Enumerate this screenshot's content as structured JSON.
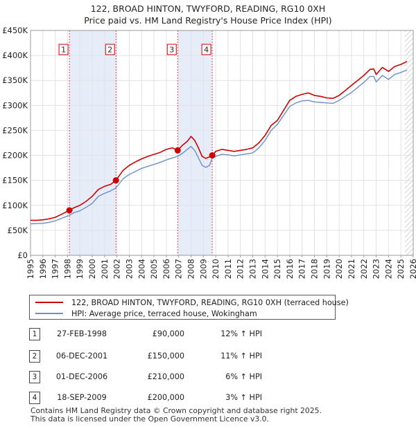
{
  "chart_data": {
    "type": "line",
    "title": "122, BROAD HINTON, TWYFORD, READING, RG10 0XH",
    "subtitle": "Price paid vs. HM Land Registry's House Price Index (HPI)",
    "xlabel": "",
    "ylabel": "",
    "xlim": [
      1995,
      2026
    ],
    "ylim": [
      0,
      450000
    ],
    "x_ticks": [
      "1995",
      "1996",
      "1997",
      "1998",
      "1999",
      "2000",
      "2001",
      "2002",
      "2003",
      "2004",
      "2005",
      "2006",
      "2007",
      "2008",
      "2009",
      "2010",
      "2011",
      "2012",
      "2013",
      "2014",
      "2015",
      "2016",
      "2017",
      "2018",
      "2019",
      "2020",
      "2021",
      "2022",
      "2023",
      "2024",
      "2025",
      "2026"
    ],
    "y_ticks": [
      {
        "value": 0,
        "label": "£0"
      },
      {
        "value": 50000,
        "label": "£50K"
      },
      {
        "value": 100000,
        "label": "£100K"
      },
      {
        "value": 150000,
        "label": "£150K"
      },
      {
        "value": 200000,
        "label": "£200K"
      },
      {
        "value": 250000,
        "label": "£250K"
      },
      {
        "value": 300000,
        "label": "£300K"
      },
      {
        "value": 350000,
        "label": "£350K"
      },
      {
        "value": 400000,
        "label": "£400K"
      },
      {
        "value": 450000,
        "label": "£450K"
      }
    ],
    "grid": true,
    "series": [
      {
        "name": "122, BROAD HINTON, TWYFORD, READING, RG10 0XH (terraced house)",
        "color": "#cc0000",
        "x": [
          1995.0,
          1995.5,
          1996.0,
          1996.5,
          1997.0,
          1997.5,
          1998.15,
          1998.5,
          1999.0,
          1999.5,
          2000.0,
          2000.5,
          2001.0,
          2001.5,
          2001.92,
          2002.5,
          2003.0,
          2003.5,
          2004.0,
          2004.5,
          2005.0,
          2005.5,
          2006.0,
          2006.5,
          2006.92,
          2007.3,
          2007.7,
          2008.0,
          2008.3,
          2008.6,
          2008.9,
          2009.2,
          2009.5,
          2009.72,
          2010.0,
          2010.5,
          2011.0,
          2011.5,
          2012.0,
          2012.5,
          2013.0,
          2013.5,
          2014.0,
          2014.5,
          2015.0,
          2015.5,
          2016.0,
          2016.5,
          2017.0,
          2017.5,
          2018.0,
          2018.5,
          2019.0,
          2019.5,
          2020.0,
          2020.5,
          2021.0,
          2021.5,
          2022.0,
          2022.5,
          2022.8,
          2023.0,
          2023.5,
          2024.0,
          2024.5,
          2025.0,
          2025.5
        ],
        "values": [
          70000,
          70000,
          71000,
          73000,
          76000,
          82000,
          90000,
          95000,
          100000,
          108000,
          118000,
          132000,
          138000,
          142000,
          150000,
          170000,
          180000,
          187000,
          193000,
          198000,
          202000,
          206000,
          212000,
          215000,
          210000,
          220000,
          228000,
          238000,
          230000,
          215000,
          198000,
          194000,
          197000,
          200000,
          208000,
          212000,
          210000,
          208000,
          210000,
          212000,
          215000,
          225000,
          240000,
          260000,
          270000,
          290000,
          310000,
          318000,
          322000,
          325000,
          320000,
          318000,
          315000,
          314000,
          320000,
          330000,
          340000,
          350000,
          360000,
          372000,
          373000,
          362000,
          376000,
          368000,
          378000,
          382000,
          388000
        ]
      },
      {
        "name": "HPI: Average price, terraced house, Wokingham",
        "color": "#6a8fc8",
        "x": [
          1995.0,
          1995.5,
          1996.0,
          1996.5,
          1997.0,
          1997.5,
          1998.15,
          1998.5,
          1999.0,
          1999.5,
          2000.0,
          2000.5,
          2001.0,
          2001.5,
          2001.92,
          2002.5,
          2003.0,
          2003.5,
          2004.0,
          2004.5,
          2005.0,
          2005.5,
          2006.0,
          2006.5,
          2006.92,
          2007.3,
          2007.7,
          2008.0,
          2008.3,
          2008.6,
          2008.9,
          2009.2,
          2009.5,
          2009.72,
          2010.0,
          2010.5,
          2011.0,
          2011.5,
          2012.0,
          2012.5,
          2013.0,
          2013.5,
          2014.0,
          2014.5,
          2015.0,
          2015.5,
          2016.0,
          2016.5,
          2017.0,
          2017.5,
          2018.0,
          2018.5,
          2019.0,
          2019.5,
          2020.0,
          2020.5,
          2021.0,
          2021.5,
          2022.0,
          2022.5,
          2022.8,
          2023.0,
          2023.5,
          2024.0,
          2024.5,
          2025.0,
          2025.5
        ],
        "values": [
          63000,
          63500,
          64000,
          66000,
          69000,
          74000,
          80000,
          85000,
          89000,
          96000,
          104000,
          118000,
          124000,
          129000,
          135000,
          153000,
          162000,
          168000,
          174000,
          178000,
          182000,
          186000,
          191000,
          195000,
          198000,
          204000,
          212000,
          218000,
          210000,
          195000,
          180000,
          176000,
          180000,
          194000,
          198000,
          202000,
          201000,
          199000,
          201000,
          203000,
          205000,
          215000,
          230000,
          250000,
          262000,
          280000,
          298000,
          305000,
          309000,
          310000,
          307000,
          306000,
          305000,
          304000,
          310000,
          318000,
          326000,
          336000,
          346000,
          358000,
          358000,
          347000,
          360000,
          352000,
          362000,
          366000,
          371000
        ]
      }
    ],
    "events": [
      {
        "label": "1",
        "x": 1998.15,
        "value": 90000
      },
      {
        "label": "2",
        "x": 2001.92,
        "value": 150000
      },
      {
        "label": "3",
        "x": 2006.92,
        "value": 210000
      },
      {
        "label": "4",
        "x": 2009.72,
        "value": 200000
      }
    ],
    "shaded_ranges": [
      [
        1998.15,
        2001.92
      ],
      [
        2006.92,
        2009.72
      ]
    ],
    "forecast_from": 2025.3,
    "legend_position": "below"
  },
  "header": {
    "title": "122, BROAD HINTON, TWYFORD, READING, RG10 0XH",
    "subtitle": "Price paid vs. HM Land Registry's House Price Index (HPI)"
  },
  "legend": {
    "items": [
      {
        "label": "122, BROAD HINTON, TWYFORD, READING, RG10 0XH (terraced house)",
        "color": "#cc0000"
      },
      {
        "label": "HPI: Average price, terraced house, Wokingham",
        "color": "#6a8fc8"
      }
    ]
  },
  "sales": [
    {
      "num": "1",
      "date": "27-FEB-1998",
      "price": "£90,000",
      "hpi": "12% ↑ HPI"
    },
    {
      "num": "2",
      "date": "06-DEC-2001",
      "price": "£150,000",
      "hpi": "11% ↑ HPI"
    },
    {
      "num": "3",
      "date": "01-DEC-2006",
      "price": "£210,000",
      "hpi": "6% ↑ HPI"
    },
    {
      "num": "4",
      "date": "18-SEP-2009",
      "price": "£200,000",
      "hpi": "3% ↑ HPI"
    }
  ],
  "footer": {
    "line1": "Contains HM Land Registry data © Crown copyright and database right 2025.",
    "line2": "This data is licensed under the Open Government Licence v3.0."
  }
}
